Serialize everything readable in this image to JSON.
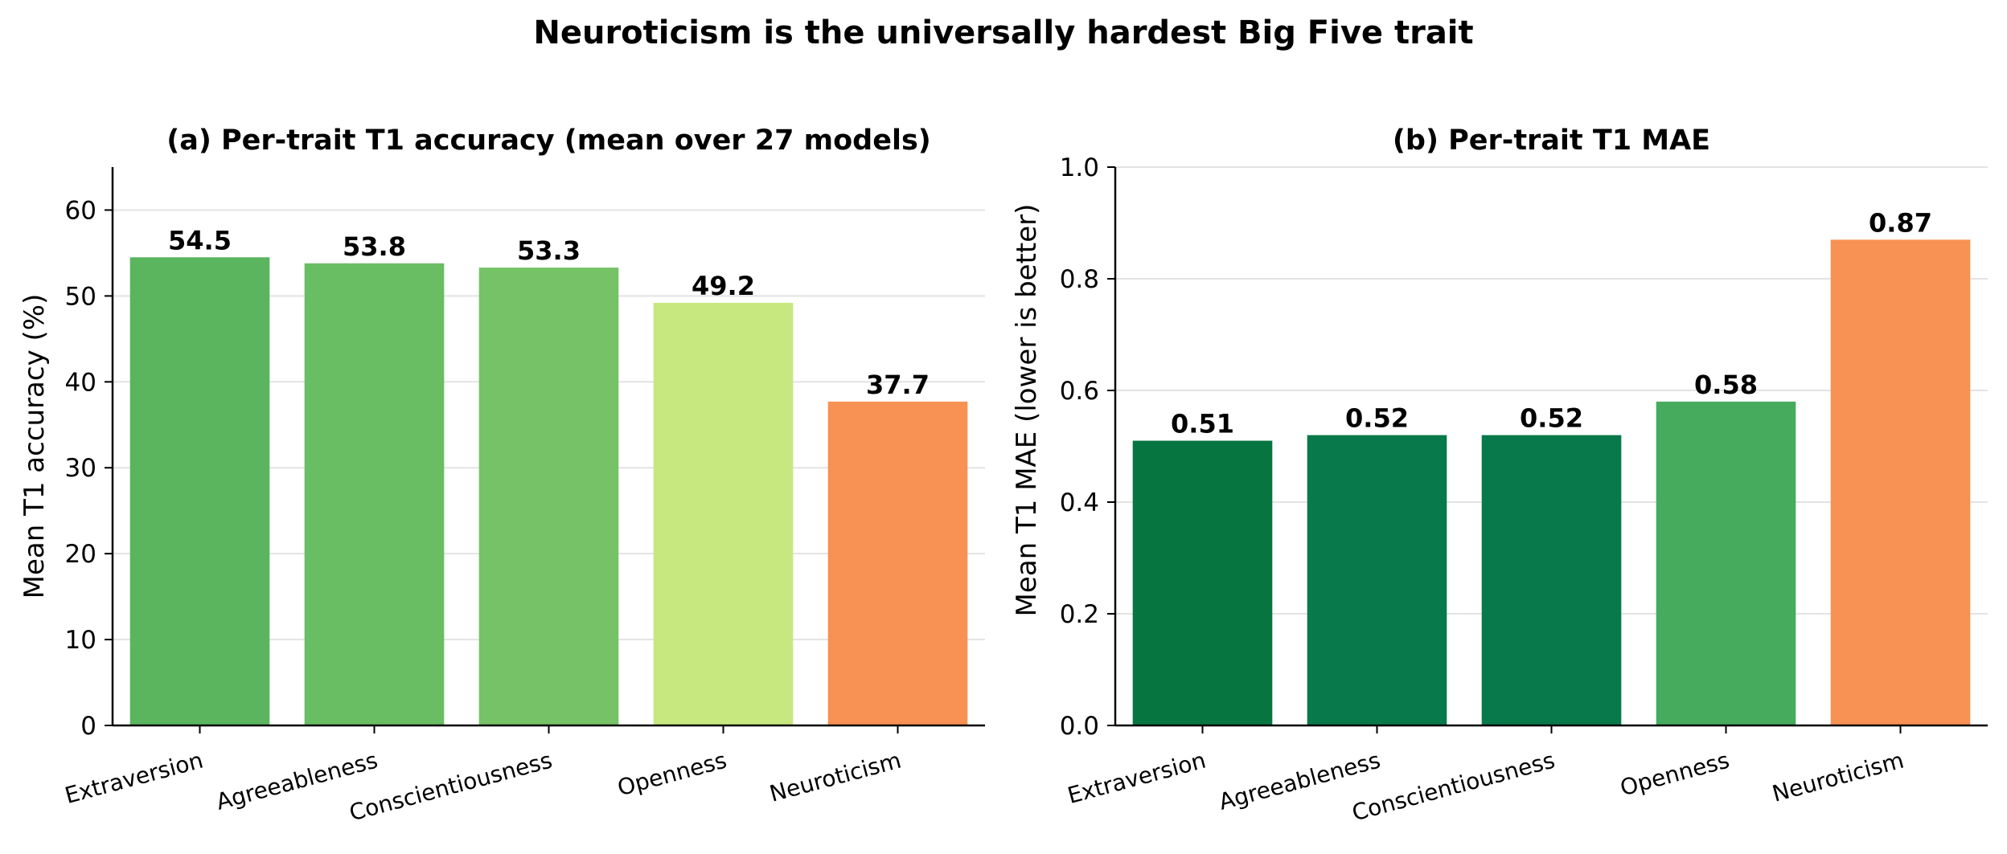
{
  "figure": {
    "suptitle": "Neuroticism is the universally hardest Big Five trait"
  },
  "chart_data": [
    {
      "type": "bar",
      "title": "(a) Per-trait T1 accuracy (mean over 27 models)",
      "xlabel": "",
      "ylabel": "Mean T1 accuracy (%)",
      "categories": [
        "Extraversion",
        "Agreeableness",
        "Conscientiousness",
        "Openness",
        "Neuroticism"
      ],
      "values": [
        54.5,
        53.8,
        53.3,
        49.2,
        37.7
      ],
      "value_labels": [
        "54.5",
        "53.8",
        "53.3",
        "49.2",
        "37.7"
      ],
      "colors": [
        "#5ab55e",
        "#69bd62",
        "#76c266",
        "#c7e77f",
        "#f79154"
      ],
      "ylim": [
        0,
        65
      ],
      "yticks": [
        0,
        10,
        20,
        30,
        40,
        50,
        60
      ],
      "ytick_labels": [
        "0",
        "10",
        "20",
        "30",
        "40",
        "50",
        "60"
      ],
      "grid": "horizontal"
    },
    {
      "type": "bar",
      "title": "(b) Per-trait T1 MAE",
      "xlabel": "",
      "ylabel": "Mean T1 MAE (lower is better)",
      "categories": [
        "Extraversion",
        "Agreeableness",
        "Conscientiousness",
        "Openness",
        "Neuroticism"
      ],
      "values": [
        0.51,
        0.52,
        0.52,
        0.58,
        0.87
      ],
      "value_labels": [
        "0.51",
        "0.52",
        "0.52",
        "0.58",
        "0.87"
      ],
      "colors": [
        "#077540",
        "#08794a",
        "#08794a",
        "#46ab5d",
        "#f79154"
      ],
      "ylim": [
        0,
        1.0
      ],
      "yticks": [
        0,
        0.2,
        0.4,
        0.6,
        0.8,
        1.0
      ],
      "ytick_labels": [
        "0.0",
        "0.2",
        "0.4",
        "0.6",
        "0.8",
        "1.0"
      ],
      "grid": "horizontal"
    }
  ]
}
